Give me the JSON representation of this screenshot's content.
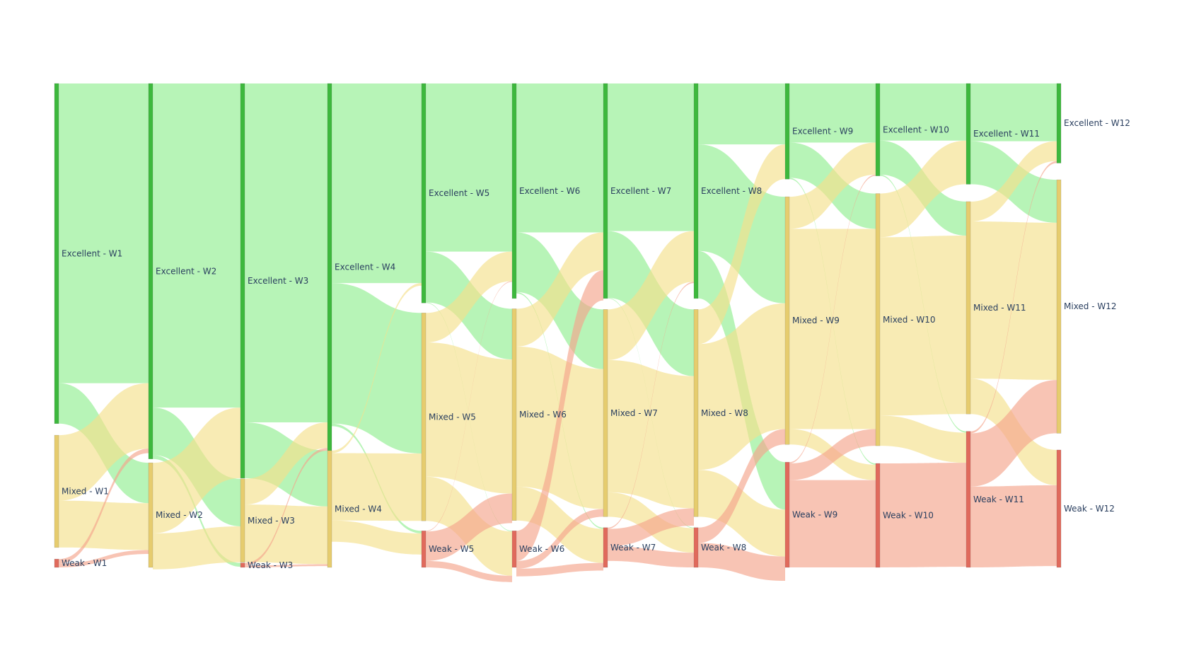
{
  "chart_data": {
    "type": "sankey",
    "title": "",
    "colors": {
      "Excellent": "#3db83d",
      "Mixed": "#e6cc6e",
      "Weak": "#e06a5c",
      "link_Excellent": "#90ee90",
      "link_Mixed": "#f5e08c",
      "link_Weak": "#f4a58c"
    },
    "columns": [
      {
        "week": "W1",
        "nodes": [
          {
            "label": "Excellent - W1",
            "cat": "Excellent",
            "value": 53
          },
          {
            "label": "Mixed - W1",
            "cat": "Mixed",
            "value": 17.5
          },
          {
            "label": "Weak - W1",
            "cat": "Weak",
            "value": 1.3
          }
        ]
      },
      {
        "week": "W2",
        "nodes": [
          {
            "label": "Excellent - W2",
            "cat": "Excellent",
            "value": 58.5
          },
          {
            "label": "Mixed - W2",
            "cat": "Mixed",
            "value": 16.3
          }
        ]
      },
      {
        "week": "W3",
        "nodes": [
          {
            "label": "Excellent - W3",
            "cat": "Excellent",
            "value": 61.5
          },
          {
            "label": "Mixed - W3",
            "cat": "Mixed",
            "value": 13
          },
          {
            "label": "Weak - W3",
            "cat": "Weak",
            "value": 0.7
          }
        ]
      },
      {
        "week": "W4",
        "nodes": [
          {
            "label": "Excellent - W4",
            "cat": "Excellent",
            "value": 57.2
          },
          {
            "label": "Mixed - W4",
            "cat": "Mixed",
            "value": 18.2
          }
        ]
      },
      {
        "week": "W5",
        "nodes": [
          {
            "label": "Excellent - W5",
            "cat": "Excellent",
            "value": 34.2
          },
          {
            "label": "Mixed - W5",
            "cat": "Mixed",
            "value": 32.4
          },
          {
            "label": "Weak - W5",
            "cat": "Weak",
            "value": 5.7
          }
        ]
      },
      {
        "week": "W6",
        "nodes": [
          {
            "label": "Excellent - W6",
            "cat": "Excellent",
            "value": 33.5
          },
          {
            "label": "Mixed - W6",
            "cat": "Mixed",
            "value": 33
          },
          {
            "label": "Weak - W6",
            "cat": "Weak",
            "value": 5.7
          }
        ]
      },
      {
        "week": "W7",
        "nodes": [
          {
            "label": "Excellent - W7",
            "cat": "Excellent",
            "value": 33.5
          },
          {
            "label": "Mixed - W7",
            "cat": "Mixed",
            "value": 32.3
          },
          {
            "label": "Weak - W7",
            "cat": "Weak",
            "value": 6.2
          }
        ]
      },
      {
        "week": "W8",
        "nodes": [
          {
            "label": "Excellent - W8",
            "cat": "Excellent",
            "value": 33.5
          },
          {
            "label": "Mixed - W8",
            "cat": "Mixed",
            "value": 32.3
          },
          {
            "label": "Weak - W8",
            "cat": "Weak",
            "value": 6.2
          }
        ]
      },
      {
        "week": "W9",
        "nodes": [
          {
            "label": "Excellent - W9",
            "cat": "Excellent",
            "value": 14.9
          },
          {
            "label": "Mixed - W9",
            "cat": "Mixed",
            "value": 38.6
          },
          {
            "label": "Weak - W9",
            "cat": "Weak",
            "value": 16.4
          }
        ]
      },
      {
        "week": "W10",
        "nodes": [
          {
            "label": "Excellent - W10",
            "cat": "Excellent",
            "value": 14.4
          },
          {
            "label": "Mixed - W10",
            "cat": "Mixed",
            "value": 39.3
          },
          {
            "label": "Weak - W10",
            "cat": "Weak",
            "value": 16.2
          }
        ]
      },
      {
        "week": "W11",
        "nodes": [
          {
            "label": "Excellent - W11",
            "cat": "Excellent",
            "value": 15.7
          },
          {
            "label": "Mixed - W11",
            "cat": "Mixed",
            "value": 33.1
          },
          {
            "label": "Weak - W11",
            "cat": "Weak",
            "value": 21.2
          }
        ]
      },
      {
        "week": "W12",
        "nodes": [
          {
            "label": "Excellent - W12",
            "cat": "Excellent",
            "value": 12.4
          },
          {
            "label": "Mixed - W12",
            "cat": "Mixed",
            "value": 39.5
          },
          {
            "label": "Weak - W12",
            "cat": "Weak",
            "value": 18.3
          }
        ]
      }
    ],
    "links": [
      {
        "from": [
          0,
          0
        ],
        "to": [
          1,
          0
        ],
        "value": 46.7
      },
      {
        "from": [
          0,
          0
        ],
        "to": [
          1,
          1
        ],
        "value": 6.3
      },
      {
        "from": [
          0,
          1
        ],
        "to": [
          1,
          0
        ],
        "value": 10.2
      },
      {
        "from": [
          0,
          1
        ],
        "to": [
          1,
          1
        ],
        "value": 7.3
      },
      {
        "from": [
          0,
          2
        ],
        "to": [
          1,
          0
        ],
        "value": 0.7
      },
      {
        "from": [
          0,
          2
        ],
        "to": [
          1,
          1
        ],
        "value": 0.6
      },
      {
        "from": [
          1,
          0
        ],
        "to": [
          2,
          0
        ],
        "value": 50.5
      },
      {
        "from": [
          1,
          0
        ],
        "to": [
          2,
          1
        ],
        "value": 7.4
      },
      {
        "from": [
          1,
          0
        ],
        "to": [
          2,
          2
        ],
        "value": 0.6
      },
      {
        "from": [
          1,
          1
        ],
        "to": [
          2,
          0
        ],
        "value": 11
      },
      {
        "from": [
          1,
          1
        ],
        "to": [
          2,
          1
        ],
        "value": 5.6
      },
      {
        "from": [
          2,
          0
        ],
        "to": [
          3,
          0
        ],
        "value": 52.8
      },
      {
        "from": [
          2,
          0
        ],
        "to": [
          3,
          1
        ],
        "value": 8.7
      },
      {
        "from": [
          2,
          1
        ],
        "to": [
          3,
          0
        ],
        "value": 4
      },
      {
        "from": [
          2,
          1
        ],
        "to": [
          3,
          1
        ],
        "value": 9
      },
      {
        "from": [
          2,
          2
        ],
        "to": [
          3,
          0
        ],
        "value": 0.4
      },
      {
        "from": [
          2,
          2
        ],
        "to": [
          3,
          1
        ],
        "value": 0.3
      },
      {
        "from": [
          3,
          0
        ],
        "to": [
          4,
          0
        ],
        "value": 31.1
      },
      {
        "from": [
          3,
          0
        ],
        "to": [
          4,
          1
        ],
        "value": 21.9
      },
      {
        "from": [
          3,
          0
        ],
        "to": [
          4,
          2
        ],
        "value": 0.4
      },
      {
        "from": [
          3,
          1
        ],
        "to": [
          4,
          0
        ],
        "value": 0.4
      },
      {
        "from": [
          3,
          1
        ],
        "to": [
          4,
          1
        ],
        "value": 10.5
      },
      {
        "from": [
          3,
          1
        ],
        "to": [
          4,
          2
        ],
        "value": 3.3
      },
      {
        "from": [
          4,
          0
        ],
        "to": [
          5,
          0
        ],
        "value": 26.2
      },
      {
        "from": [
          4,
          0
        ],
        "to": [
          5,
          1
        ],
        "value": 7.9
      },
      {
        "from": [
          4,
          0
        ],
        "to": [
          5,
          2
        ],
        "value": 0.1
      },
      {
        "from": [
          4,
          1
        ],
        "to": [
          5,
          0
        ],
        "value": 4.6
      },
      {
        "from": [
          4,
          1
        ],
        "to": [
          5,
          1
        ],
        "value": 20.9
      },
      {
        "from": [
          4,
          1
        ],
        "to": [
          5,
          2
        ],
        "value": 6.9
      },
      {
        "from": [
          4,
          2
        ],
        "to": [
          5,
          0
        ],
        "value": 0.1
      },
      {
        "from": [
          4,
          2
        ],
        "to": [
          5,
          1
        ],
        "value": 4.6
      },
      {
        "from": [
          4,
          2
        ],
        "to": [
          5,
          2
        ],
        "value": 1
      },
      {
        "from": [
          5,
          0
        ],
        "to": [
          6,
          0
        ],
        "value": 23.2
      },
      {
        "from": [
          5,
          0
        ],
        "to": [
          6,
          1
        ],
        "value": 9.3
      },
      {
        "from": [
          5,
          0
        ],
        "to": [
          6,
          2
        ],
        "value": 0.2
      },
      {
        "from": [
          5,
          1
        ],
        "to": [
          6,
          0
        ],
        "value": 5.9
      },
      {
        "from": [
          5,
          1
        ],
        "to": [
          6,
          1
        ],
        "value": 21.8
      },
      {
        "from": [
          5,
          1
        ],
        "to": [
          6,
          2
        ],
        "value": 5.3
      },
      {
        "from": [
          5,
          2
        ],
        "to": [
          6,
          0
        ],
        "value": 4.7
      },
      {
        "from": [
          5,
          2
        ],
        "to": [
          6,
          1
        ],
        "value": 1.2
      },
      {
        "from": [
          5,
          2
        ],
        "to": [
          6,
          2
        ],
        "value": 1.2
      },
      {
        "from": [
          6,
          0
        ],
        "to": [
          7,
          0
        ],
        "value": 23
      },
      {
        "from": [
          6,
          0
        ],
        "to": [
          7,
          1
        ],
        "value": 10.4
      },
      {
        "from": [
          6,
          0
        ],
        "to": [
          7,
          2
        ],
        "value": 0.1
      },
      {
        "from": [
          6,
          1
        ],
        "to": [
          7,
          0
        ],
        "value": 7.9
      },
      {
        "from": [
          6,
          1
        ],
        "to": [
          7,
          1
        ],
        "value": 20.6
      },
      {
        "from": [
          6,
          1
        ],
        "to": [
          7,
          2
        ],
        "value": 3.8
      },
      {
        "from": [
          6,
          2
        ],
        "to": [
          7,
          0
        ],
        "value": 0.2
      },
      {
        "from": [
          6,
          2
        ],
        "to": [
          7,
          1
        ],
        "value": 2.7
      },
      {
        "from": [
          6,
          2
        ],
        "to": [
          7,
          2
        ],
        "value": 2.3
      },
      {
        "from": [
          7,
          0
        ],
        "to": [
          8,
          0
        ],
        "value": 9.5
      },
      {
        "from": [
          7,
          0
        ],
        "to": [
          8,
          1
        ],
        "value": 16.6
      },
      {
        "from": [
          7,
          0
        ],
        "to": [
          8,
          2
        ],
        "value": 7.4
      },
      {
        "from": [
          7,
          1
        ],
        "to": [
          8,
          0
        ],
        "value": 5.4
      },
      {
        "from": [
          7,
          1
        ],
        "to": [
          8,
          1
        ],
        "value": 19.6
      },
      {
        "from": [
          7,
          1
        ],
        "to": [
          8,
          2
        ],
        "value": 7.3
      },
      {
        "from": [
          7,
          2
        ],
        "to": [
          8,
          1
        ],
        "value": 2.4
      },
      {
        "from": [
          7,
          2
        ],
        "to": [
          8,
          2
        ],
        "value": 3.8
      },
      {
        "from": [
          8,
          0
        ],
        "to": [
          9,
          0
        ],
        "value": 9.2
      },
      {
        "from": [
          8,
          0
        ],
        "to": [
          9,
          1
        ],
        "value": 5.5
      },
      {
        "from": [
          8,
          0
        ],
        "to": [
          9,
          2
        ],
        "value": 0.2
      },
      {
        "from": [
          8,
          1
        ],
        "to": [
          9,
          0
        ],
        "value": 5
      },
      {
        "from": [
          8,
          1
        ],
        "to": [
          9,
          1
        ],
        "value": 31.2
      },
      {
        "from": [
          8,
          1
        ],
        "to": [
          9,
          2
        ],
        "value": 2.4
      },
      {
        "from": [
          8,
          2
        ],
        "to": [
          9,
          0
        ],
        "value": 0.2
      },
      {
        "from": [
          8,
          2
        ],
        "to": [
          9,
          1
        ],
        "value": 2.6
      },
      {
        "from": [
          8,
          2
        ],
        "to": [
          9,
          2
        ],
        "value": 13.6
      },
      {
        "from": [
          9,
          0
        ],
        "to": [
          10,
          0
        ],
        "value": 8.9
      },
      {
        "from": [
          9,
          0
        ],
        "to": [
          10,
          1
        ],
        "value": 5.3
      },
      {
        "from": [
          9,
          0
        ],
        "to": [
          10,
          2
        ],
        "value": 0.2
      },
      {
        "from": [
          9,
          1
        ],
        "to": [
          10,
          0
        ],
        "value": 6.8
      },
      {
        "from": [
          9,
          1
        ],
        "to": [
          10,
          1
        ],
        "value": 27.8
      },
      {
        "from": [
          9,
          1
        ],
        "to": [
          10,
          2
        ],
        "value": 4.7
      },
      {
        "from": [
          9,
          2
        ],
        "to": [
          10,
          1
        ],
        "value": 0
      },
      {
        "from": [
          9,
          2
        ],
        "to": [
          10,
          2
        ],
        "value": 16.2
      },
      {
        "from": [
          10,
          0
        ],
        "to": [
          11,
          0
        ],
        "value": 9
      },
      {
        "from": [
          10,
          0
        ],
        "to": [
          11,
          1
        ],
        "value": 6.7
      },
      {
        "from": [
          10,
          1
        ],
        "to": [
          11,
          0
        ],
        "value": 3.1
      },
      {
        "from": [
          10,
          1
        ],
        "to": [
          11,
          1
        ],
        "value": 24.5
      },
      {
        "from": [
          10,
          1
        ],
        "to": [
          11,
          2
        ],
        "value": 5.5
      },
      {
        "from": [
          10,
          2
        ],
        "to": [
          11,
          0
        ],
        "value": 0.3
      },
      {
        "from": [
          10,
          2
        ],
        "to": [
          11,
          1
        ],
        "value": 8.3
      },
      {
        "from": [
          10,
          2
        ],
        "to": [
          11,
          2
        ],
        "value": 12.6
      }
    ]
  }
}
